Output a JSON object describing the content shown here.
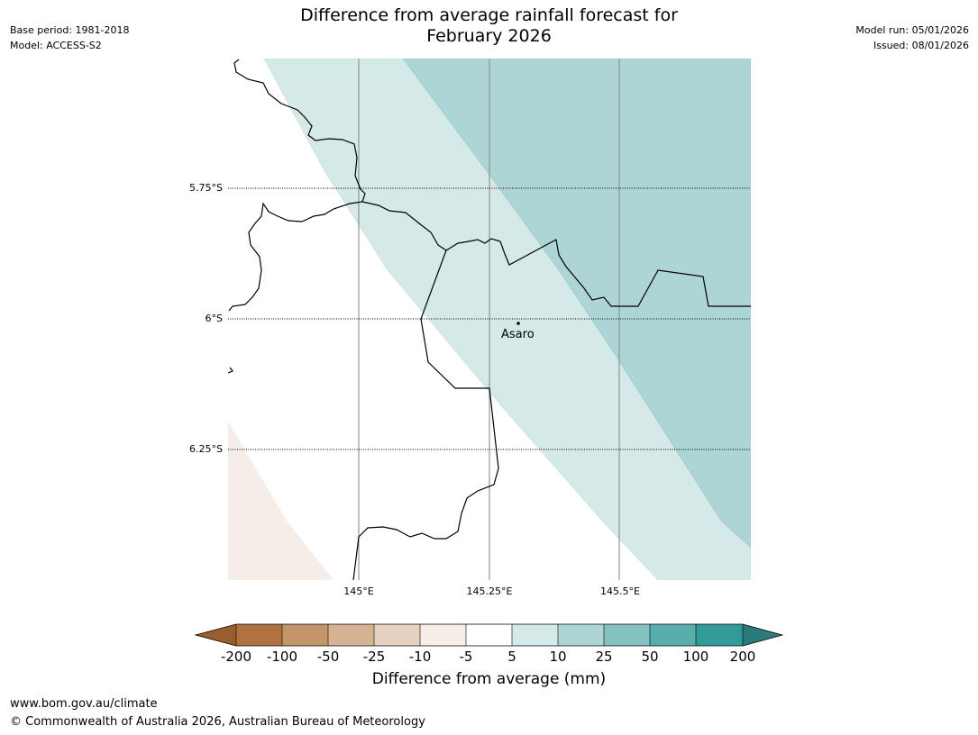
{
  "title_line1": "Difference from average rainfall forecast for",
  "title_line2": "February 2026",
  "meta_left": {
    "base_period": "Base period: 1981-2018",
    "model": "Model: ACCESS-S2"
  },
  "meta_right": {
    "model_run": "Model run: 05/01/2026",
    "issued": "Issued: 08/01/2026"
  },
  "map": {
    "lat_labels": [
      "5.75°S",
      "6°S",
      "6.25°S"
    ],
    "lon_labels": [
      "145°E",
      "145.25°E",
      "145.5°E"
    ],
    "place": {
      "name": "Asaro"
    },
    "region_colors": {
      "dry_-10_-5": "#f5ede7",
      "wet_5_10": "#d5e9e8",
      "wet_10_25": "#aed5d5"
    }
  },
  "colorbar": {
    "title": "Difference from average (mm)",
    "tick_labels": [
      "-200",
      "-100",
      "-50",
      "-25",
      "-10",
      "-5",
      "5",
      "10",
      "25",
      "50",
      "100",
      "200"
    ],
    "colors": [
      "#9a5d2c",
      "#b07340",
      "#c4946a",
      "#d5b393",
      "#e6d2c0",
      "#f5ede7",
      "#ffffff",
      "#d5e9e8",
      "#aed5d5",
      "#84c2c0",
      "#5aadad",
      "#329a98",
      "#2a7b7a"
    ]
  },
  "footer": {
    "url": "www.bom.gov.au/climate",
    "copyright": "© Commonwealth of Australia 2026, Australian Bureau of Meteorology"
  }
}
